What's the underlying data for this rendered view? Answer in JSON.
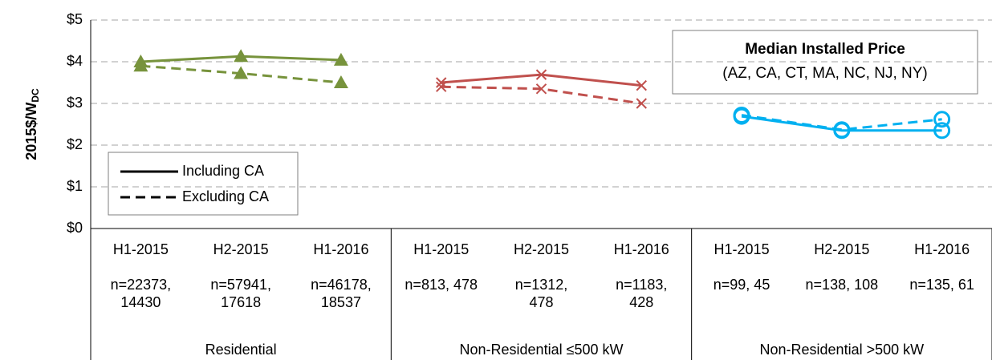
{
  "chart_data": {
    "type": "line",
    "y_label": "2015$/W",
    "y_label_sub": "DC",
    "annotation": {
      "title": "Median Installed Price",
      "subtitle": "(AZ, CA, CT, MA, NC, NJ, NY)"
    },
    "categories": [
      "H1-2015",
      "H2-2015",
      "H1-2016",
      "H1-2015",
      "H2-2015",
      "H1-2016",
      "H1-2015",
      "H2-2015",
      "H1-2016"
    ],
    "sample_sizes": [
      [
        "n=22373,",
        "14430"
      ],
      [
        "n=57941,",
        "17618"
      ],
      [
        "n=46178,",
        "18537"
      ],
      [
        "n=813, 478"
      ],
      [
        "n=1312,",
        "478"
      ],
      [
        "n=1183,",
        "428"
      ],
      [
        "n=99, 45"
      ],
      [
        "n=138, 108"
      ],
      [
        "n=135, 61"
      ]
    ],
    "groups": [
      {
        "name": "Residential",
        "color": "#77933c",
        "marker": "triangle"
      },
      {
        "name": "Non-Residential  ≤500 kW",
        "color": "#c0504d",
        "marker": "cross"
      },
      {
        "name": "Non-Residential >500 kW",
        "color": "#00b0f0",
        "marker": "circle"
      }
    ],
    "series": [
      {
        "name": "Including CA",
        "dashed": false,
        "values": [
          4.0,
          4.13,
          4.04,
          3.5,
          3.69,
          3.43,
          2.69,
          2.35,
          2.35
        ]
      },
      {
        "name": "Excluding CA",
        "dashed": true,
        "values": [
          3.9,
          3.72,
          3.5,
          3.4,
          3.35,
          3.0,
          2.72,
          2.37,
          2.62
        ]
      }
    ],
    "ylim": [
      0,
      5
    ],
    "yticks": [
      {
        "value": 0,
        "label": "$0"
      },
      {
        "value": 1,
        "label": "$1"
      },
      {
        "value": 2,
        "label": "$2"
      },
      {
        "value": 3,
        "label": "$3"
      },
      {
        "value": 4,
        "label": "$4"
      },
      {
        "value": 5,
        "label": "$5"
      }
    ],
    "grid": true
  }
}
